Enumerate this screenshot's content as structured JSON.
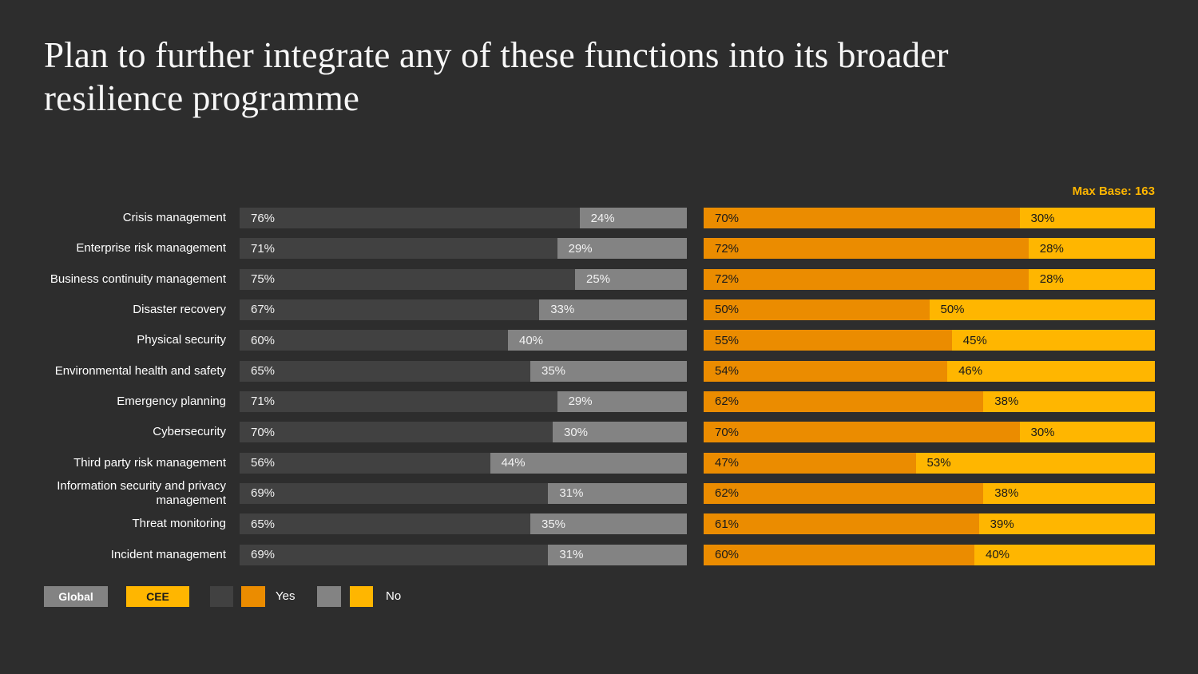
{
  "title": {
    "line1": "Plan to further integrate any of these functions into its broader",
    "line2": "resilience programme"
  },
  "max_base_label": "Max Base: 163",
  "legend": {
    "global_label": "Global",
    "cee_label": "CEE",
    "yes_label": "Yes",
    "no_label": "No"
  },
  "colors": {
    "background": "#2D2D2D",
    "global_yes": "#414141",
    "global_no": "#838383",
    "cee_yes": "#EB8C00",
    "cee_no": "#FFB600",
    "title_text": "#F7F7F7",
    "bar_text_light": "#F2F2F2",
    "bar_text_dark": "#1A1A1A"
  },
  "chart_data": {
    "type": "bar",
    "orientation": "horizontal-stacked",
    "title": "Plan to further integrate any of these functions into its broader resilience programme",
    "max_base": 163,
    "value_suffix": "%",
    "legend_position": "bottom-left",
    "grid": false,
    "categories": [
      "Crisis management",
      "Enterprise risk management",
      "Business continuity management",
      "Disaster recovery",
      "Physical security",
      "Environmental health and safety",
      "Emergency planning",
      "Cybersecurity",
      "Third party risk management",
      "Information security and  privacy management",
      "Threat monitoring",
      "Incident management"
    ],
    "series": [
      {
        "name": "Global Yes",
        "values": [
          76,
          71,
          75,
          67,
          60,
          65,
          71,
          70,
          56,
          69,
          65,
          69
        ]
      },
      {
        "name": "Global No",
        "values": [
          24,
          29,
          25,
          33,
          40,
          35,
          29,
          30,
          44,
          31,
          35,
          31
        ]
      },
      {
        "name": "CEE Yes",
        "values": [
          70,
          72,
          72,
          50,
          55,
          54,
          62,
          70,
          47,
          62,
          61,
          60
        ]
      },
      {
        "name": "CEE No",
        "values": [
          30,
          28,
          28,
          50,
          45,
          46,
          38,
          30,
          53,
          38,
          39,
          40
        ]
      }
    ]
  },
  "layout": {
    "first_row_top": 260,
    "row_pitch": 38.33
  }
}
